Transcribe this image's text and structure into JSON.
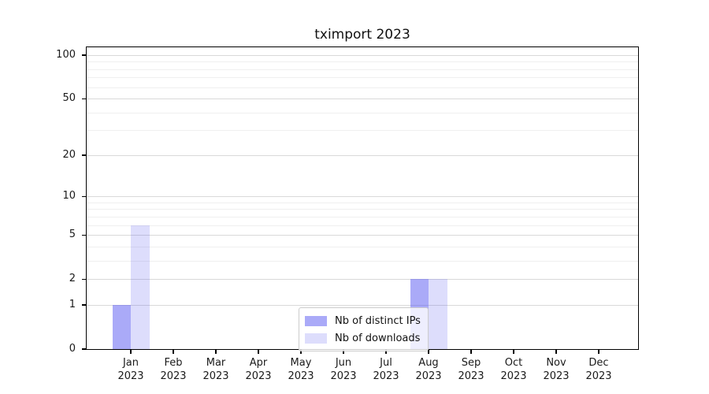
{
  "chart_data": {
    "type": "bar",
    "title": "tximport 2023",
    "categories": [
      "Jan",
      "Feb",
      "Mar",
      "Apr",
      "May",
      "Jun",
      "Jul",
      "Aug",
      "Sep",
      "Oct",
      "Nov",
      "Dec"
    ],
    "year_label": "2023",
    "series": [
      {
        "name": "Nb of distinct IPs",
        "color": "rgba(85,85,241,0.5)",
        "color_on_white": "#aaaaf8",
        "values": [
          1,
          0,
          0,
          0,
          0,
          0,
          0,
          2,
          0,
          0,
          0,
          0
        ]
      },
      {
        "name": "Nb of downloads",
        "color": "rgba(85,85,241,0.2)",
        "color_on_white": "#dcdcf9",
        "values": [
          6,
          0,
          0,
          0,
          0,
          0,
          0,
          2,
          0,
          0,
          0,
          0
        ]
      }
    ],
    "xlabel": "",
    "ylabel": "",
    "yscale": "log1p",
    "ylim": [
      0,
      113.3
    ],
    "yticks": [
      0,
      1,
      2,
      5,
      10,
      20,
      50,
      100
    ],
    "y_minor_ticks": [
      3,
      4,
      6,
      7,
      8,
      9,
      30,
      40,
      60,
      70,
      80,
      90
    ],
    "grid": true,
    "legend": {
      "location": "inside-bottom-center",
      "entries": [
        "Nb of distinct IPs",
        "Nb of downloads"
      ]
    }
  },
  "colors": {
    "background": "#ffffff",
    "spine": "#000000",
    "grid_major": "#d9d9d9",
    "grid_minor": "#efefef",
    "text": "#1a1a1a",
    "legend_border": "#cccccc"
  }
}
